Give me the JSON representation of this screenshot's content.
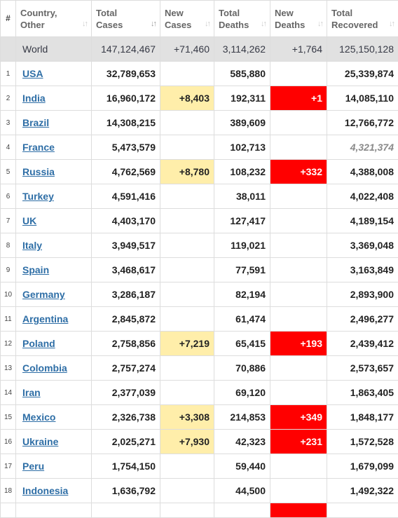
{
  "headers": {
    "num": "#",
    "country": "Country, Other",
    "total_cases": "Total Cases",
    "new_cases": "New Cases",
    "total_deaths": "Total Deaths",
    "new_deaths": "New Deaths",
    "total_recovered": "Total Recovered",
    "sort_glyph": "↓↑"
  },
  "world": {
    "name": "World",
    "total_cases": "147,124,467",
    "new_cases": "+71,460",
    "total_deaths": "3,114,262",
    "new_deaths": "+1,764",
    "total_recovered": "125,150,128"
  },
  "rows": [
    {
      "num": "1",
      "country": "USA",
      "total_cases": "32,789,653",
      "new_cases": "",
      "total_deaths": "585,880",
      "new_deaths": "",
      "total_recovered": "25,339,874"
    },
    {
      "num": "2",
      "country": "India",
      "total_cases": "16,960,172",
      "new_cases": "+8,403",
      "total_deaths": "192,311",
      "new_deaths": "+1",
      "total_recovered": "14,085,110"
    },
    {
      "num": "3",
      "country": "Brazil",
      "total_cases": "14,308,215",
      "new_cases": "",
      "total_deaths": "389,609",
      "new_deaths": "",
      "total_recovered": "12,766,772"
    },
    {
      "num": "4",
      "country": "France",
      "total_cases": "5,473,579",
      "new_cases": "",
      "total_deaths": "102,713",
      "new_deaths": "",
      "total_recovered": "4,321,374"
    },
    {
      "num": "5",
      "country": "Russia",
      "total_cases": "4,762,569",
      "new_cases": "+8,780",
      "total_deaths": "108,232",
      "new_deaths": "+332",
      "total_recovered": "4,388,008"
    },
    {
      "num": "6",
      "country": "Turkey",
      "total_cases": "4,591,416",
      "new_cases": "",
      "total_deaths": "38,011",
      "new_deaths": "",
      "total_recovered": "4,022,408"
    },
    {
      "num": "7",
      "country": "UK",
      "total_cases": "4,403,170",
      "new_cases": "",
      "total_deaths": "127,417",
      "new_deaths": "",
      "total_recovered": "4,189,154"
    },
    {
      "num": "8",
      "country": "Italy",
      "total_cases": "3,949,517",
      "new_cases": "",
      "total_deaths": "119,021",
      "new_deaths": "",
      "total_recovered": "3,369,048"
    },
    {
      "num": "9",
      "country": "Spain",
      "total_cases": "3,468,617",
      "new_cases": "",
      "total_deaths": "77,591",
      "new_deaths": "",
      "total_recovered": "3,163,849"
    },
    {
      "num": "10",
      "country": "Germany",
      "total_cases": "3,286,187",
      "new_cases": "",
      "total_deaths": "82,194",
      "new_deaths": "",
      "total_recovered": "2,893,900"
    },
    {
      "num": "11",
      "country": "Argentina",
      "total_cases": "2,845,872",
      "new_cases": "",
      "total_deaths": "61,474",
      "new_deaths": "",
      "total_recovered": "2,496,277"
    },
    {
      "num": "12",
      "country": "Poland",
      "total_cases": "2,758,856",
      "new_cases": "+7,219",
      "total_deaths": "65,415",
      "new_deaths": "+193",
      "total_recovered": "2,439,412"
    },
    {
      "num": "13",
      "country": "Colombia",
      "total_cases": "2,757,274",
      "new_cases": "",
      "total_deaths": "70,886",
      "new_deaths": "",
      "total_recovered": "2,573,657"
    },
    {
      "num": "14",
      "country": "Iran",
      "total_cases": "2,377,039",
      "new_cases": "",
      "total_deaths": "69,120",
      "new_deaths": "",
      "total_recovered": "1,863,405"
    },
    {
      "num": "15",
      "country": "Mexico",
      "total_cases": "2,326,738",
      "new_cases": "+3,308",
      "total_deaths": "214,853",
      "new_deaths": "+349",
      "total_recovered": "1,848,177"
    },
    {
      "num": "16",
      "country": "Ukraine",
      "total_cases": "2,025,271",
      "new_cases": "+7,930",
      "total_deaths": "42,323",
      "new_deaths": "+231",
      "total_recovered": "1,572,528"
    },
    {
      "num": "17",
      "country": "Peru",
      "total_cases": "1,754,150",
      "new_cases": "",
      "total_deaths": "59,440",
      "new_deaths": "",
      "total_recovered": "1,679,099"
    },
    {
      "num": "18",
      "country": "Indonesia",
      "total_cases": "1,636,792",
      "new_cases": "",
      "total_deaths": "44,500",
      "new_deaths": "",
      "total_recovered": "1,492,322"
    }
  ],
  "colors": {
    "link": "#2e6ea6",
    "new_cases_bg": "#ffeeaa",
    "new_deaths_bg": "#ff0000",
    "world_row_bg": "#e1e1e1"
  }
}
